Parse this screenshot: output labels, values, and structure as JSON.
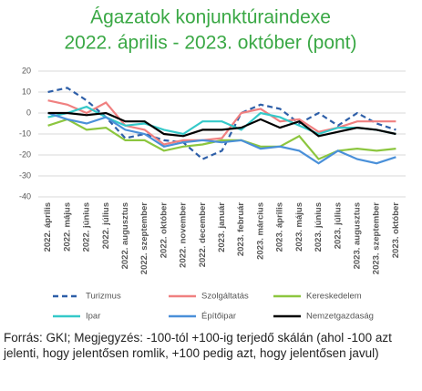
{
  "chart_data": {
    "type": "line",
    "title": "Ágazatok konjunktúraindexe",
    "subtitle": "2022. április - 2023. október (pont)",
    "categories": [
      "2022. április",
      "2022. május",
      "2022. június",
      "2022. július",
      "2022. augusztus",
      "2022. szeptember",
      "2022. október",
      "2022. november",
      "2022. december",
      "2023. január",
      "2023. február",
      "2023. március",
      "2023. április",
      "2023. május",
      "2023. június",
      "2023. július",
      "2023. augusztus",
      "2023. szeptember",
      "2023. október"
    ],
    "series": [
      {
        "name": "Turizmus",
        "color": "#2e5fa8",
        "dashed": true,
        "values": [
          10,
          12,
          6,
          -2,
          -12,
          -10,
          -13,
          -14,
          -22,
          -18,
          0,
          4,
          2,
          -5,
          0,
          -6,
          0,
          -5,
          -8
        ]
      },
      {
        "name": "Szolgáltatás",
        "color": "#f08080",
        "values": [
          6,
          4,
          0,
          5,
          -6,
          -8,
          -15,
          -13,
          -13,
          -12,
          0,
          2,
          -4,
          -3,
          -9,
          -7,
          -4,
          -4,
          -4
        ]
      },
      {
        "name": "Kereskedelem",
        "color": "#8cc63f",
        "values": [
          -6,
          -3,
          -8,
          -7,
          -13,
          -13,
          -18,
          -16,
          -15,
          -13,
          -13,
          -16,
          -16,
          -11,
          -22,
          -18,
          -17,
          -18,
          -17
        ]
      },
      {
        "name": "Ipar",
        "color": "#35c9c9",
        "values": [
          -2,
          0,
          3,
          -2,
          -6,
          -5,
          -8,
          -10,
          -4,
          -4,
          -8,
          0,
          -2,
          -6,
          -10,
          -7,
          -7,
          -8,
          -10
        ]
      },
      {
        "name": "Építőipar",
        "color": "#4a90d9",
        "values": [
          0,
          -3,
          -5,
          -2,
          -8,
          -10,
          -16,
          -14,
          -13,
          -14,
          -13,
          -17,
          -16,
          -18,
          -24,
          -18,
          -22,
          -24,
          -21
        ]
      },
      {
        "name": "Nemzetgazdaság",
        "color": "#000000",
        "values": [
          0,
          0,
          -1,
          0,
          -4,
          -4,
          -10,
          -11,
          -8,
          -8,
          -7,
          -3,
          -7,
          -4,
          -11,
          -9,
          -7,
          -8,
          -10
        ]
      }
    ],
    "ylim": [
      -40,
      20
    ],
    "yticks": [
      -40,
      -30,
      -20,
      -10,
      0,
      10,
      20
    ],
    "grid": true,
    "note": "Forrás: GKI; Megjegyzés: -100-tól +100-ig terjedő skálán (ahol -100 azt jelenti, hogy jelentősen romlik, +100 pedig azt, hogy jelentősen javul)"
  }
}
